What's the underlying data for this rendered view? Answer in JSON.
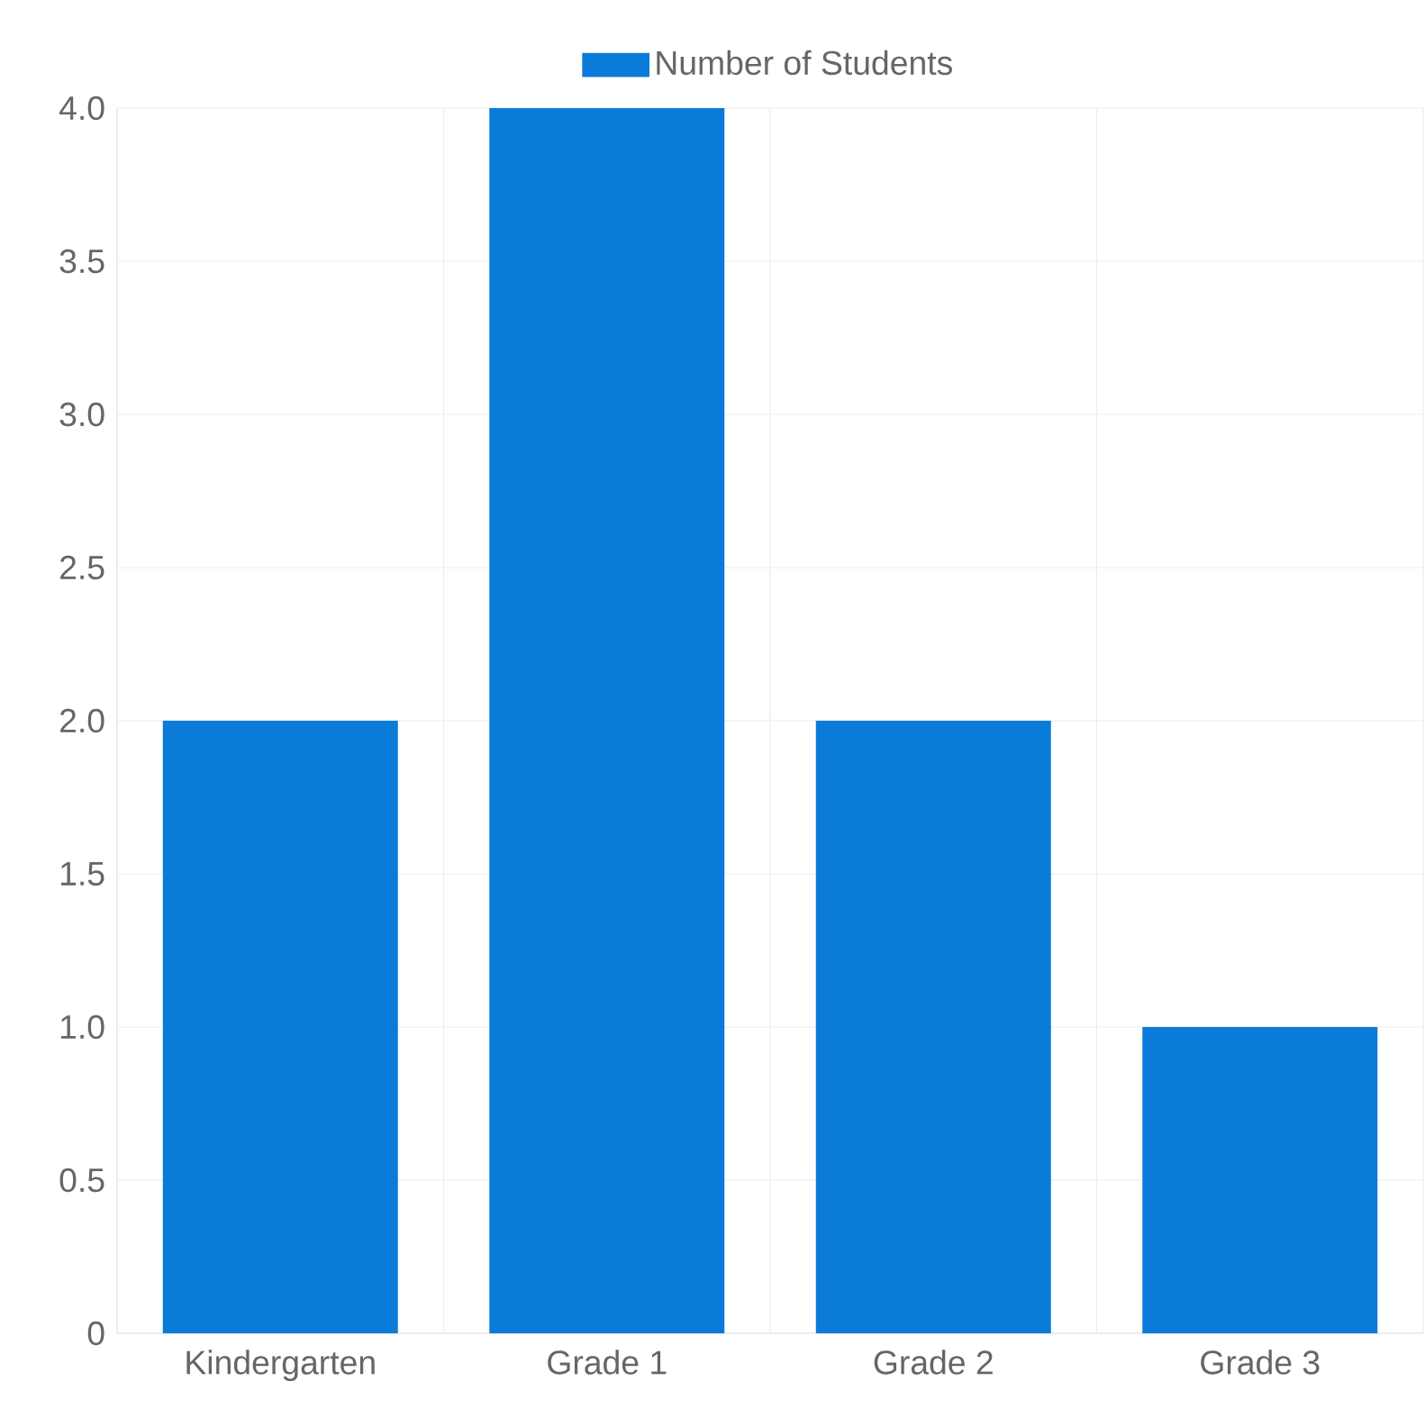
{
  "chart_data": {
    "type": "bar",
    "categories": [
      "Kindergarten",
      "Grade 1",
      "Grade 2",
      "Grade 3"
    ],
    "series": [
      {
        "name": "Number of Students",
        "color": "#0a7bd8",
        "values": [
          2,
          4,
          2,
          1
        ]
      }
    ],
    "ylim": [
      0,
      4
    ],
    "yticks": [
      0,
      0.5,
      {
        "value": 1,
        "label": "1.0"
      },
      1.5,
      {
        "value": 2,
        "label": "2.0"
      },
      2.5,
      {
        "value": 3,
        "label": "3.0"
      },
      3.5,
      {
        "value": 4,
        "label": "4.0"
      }
    ],
    "grid": true,
    "legend": "top"
  }
}
